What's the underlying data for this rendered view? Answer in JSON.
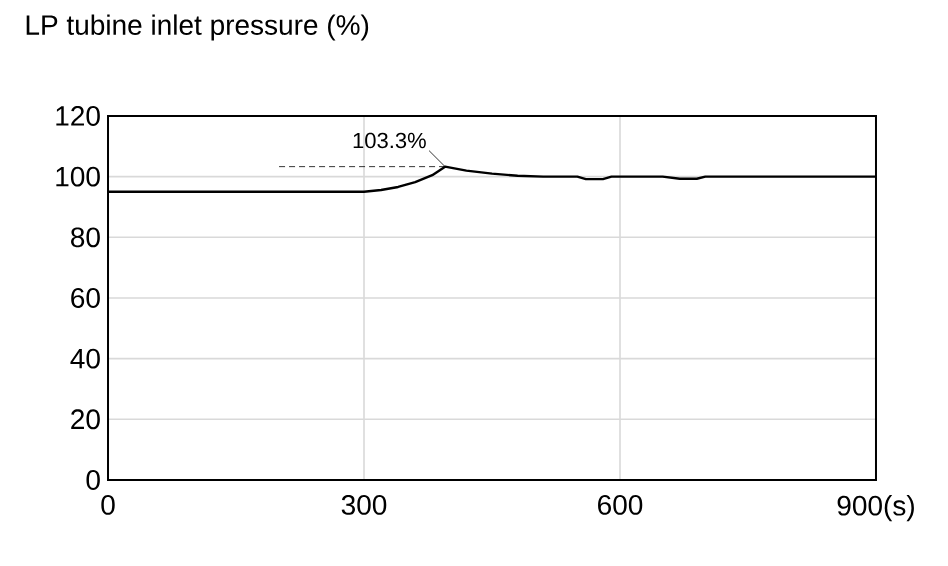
{
  "chart_data": {
    "type": "line",
    "title": "LP tubine inlet pressure (%)",
    "x": [
      0,
      300,
      320,
      340,
      360,
      380,
      395,
      420,
      450,
      480,
      510,
      550,
      560,
      580,
      590,
      650,
      670,
      690,
      700,
      900
    ],
    "values": [
      95,
      95,
      95.6,
      96.6,
      98.2,
      100.5,
      103.3,
      102,
      101,
      100.3,
      100,
      100,
      99.2,
      99.2,
      100,
      100,
      99.3,
      99.3,
      100,
      100
    ],
    "color": "#000000",
    "line_style": "solid",
    "marker": "none",
    "xlim": [
      0,
      900
    ],
    "xticks": [
      0,
      300,
      600,
      {
        "value": 900,
        "label": "900(s)"
      }
    ],
    "ylim": [
      0,
      120
    ],
    "yticks": [
      0,
      20,
      40,
      60,
      80,
      100,
      120
    ],
    "grid": true,
    "annotations": [
      {
        "text": "103.3%",
        "x": 395,
        "y": 103.3
      }
    ]
  }
}
